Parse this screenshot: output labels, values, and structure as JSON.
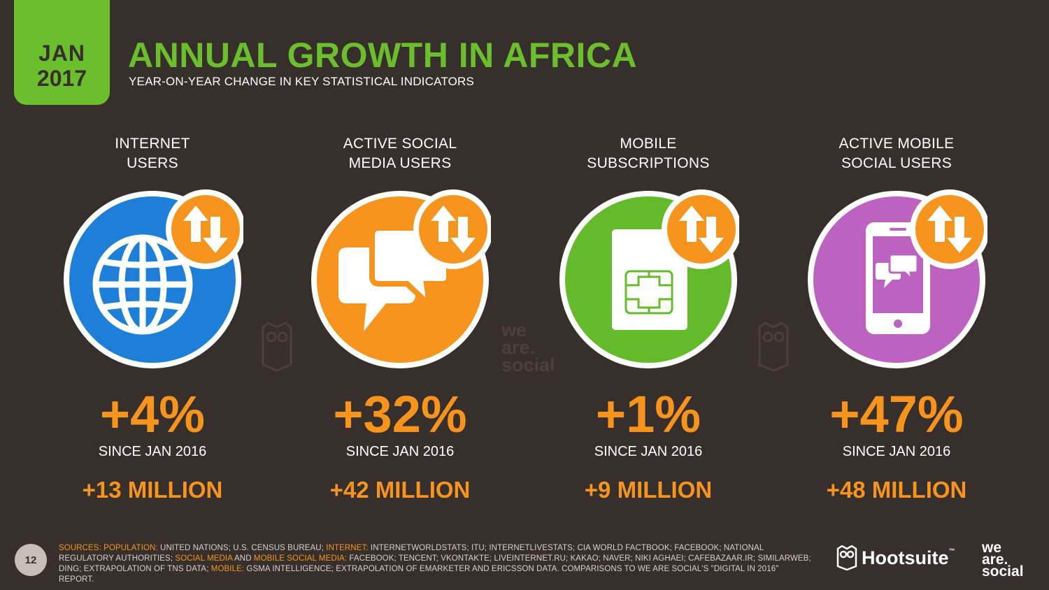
{
  "header": {
    "month": "JAN",
    "year": "2017",
    "title": "ANNUAL GROWTH IN AFRICA",
    "subtitle": "YEAR-ON-YEAR CHANGE IN KEY STATISTICAL INDICATORS"
  },
  "indicators": [
    {
      "label": "INTERNET\nUSERS",
      "percent": "+4%",
      "since": "SINCE JAN 2016",
      "absolute": "+13 MILLION",
      "color": "#1e7fd8",
      "icon": "globe-icon"
    },
    {
      "label": "ACTIVE SOCIAL\nMEDIA USERS",
      "percent": "+32%",
      "since": "SINCE JAN 2016",
      "absolute": "+42 MILLION",
      "color": "#f7941d",
      "icon": "chat-bubbles-icon"
    },
    {
      "label": "MOBILE\nSUBSCRIPTIONS",
      "percent": "+1%",
      "since": "SINCE JAN 2016",
      "absolute": "+9 MILLION",
      "color": "#63bb2b",
      "icon": "sim-card-icon"
    },
    {
      "label": "ACTIVE MOBILE\nSOCIAL USERS",
      "percent": "+47%",
      "since": "SINCE JAN 2016",
      "absolute": "+48 MILLION",
      "color": "#bd62c0",
      "icon": "smartphone-chat-icon"
    }
  ],
  "colors": {
    "accent_green": "#6cbf2c",
    "accent_orange": "#f7941d",
    "background": "#372f2b"
  },
  "watermark": {
    "line1": "we",
    "line2": "are.",
    "line3": "social"
  },
  "footer": {
    "page_number": "12",
    "sources_label": "SOURCES:",
    "population_label": "POPULATION:",
    "population_text": " UNITED NATIONS; U.S. CENSUS BUREAU; ",
    "internet_label": "INTERNET:",
    "internet_text": " INTERNETWORLDSTATS; ITU; INTERNETLIVESTATS; CIA WORLD FACTBOOK; FACEBOOK; NATIONAL REGULATORY AUTHORITIES; ",
    "social_label": "SOCIAL MEDIA",
    "and_text": " AND ",
    "mobile_social_label": "MOBILE SOCIAL MEDIA:",
    "social_text": " FACEBOOK; TENCENT; VKONTAKTE; LIVEINTERNET.RU; KAKAO; NAVER; NIKI AGHAEI; CAFEBAZAAR.IR; SIMILARWEB; DING; EXTRAPOLATION OF TNS DATA; ",
    "mobile_label": "MOBILE:",
    "mobile_text": " GSMA INTELLIGENCE; EXTRAPOLATION OF EMARKETER AND ERICSSON DATA. COMPARISONS TO WE ARE SOCIAL'S \"DIGITAL IN 2016\" REPORT.",
    "hootsuite": "Hootsuite",
    "tm": "™",
    "was1": "we",
    "was2": "are.",
    "was3": "social"
  }
}
